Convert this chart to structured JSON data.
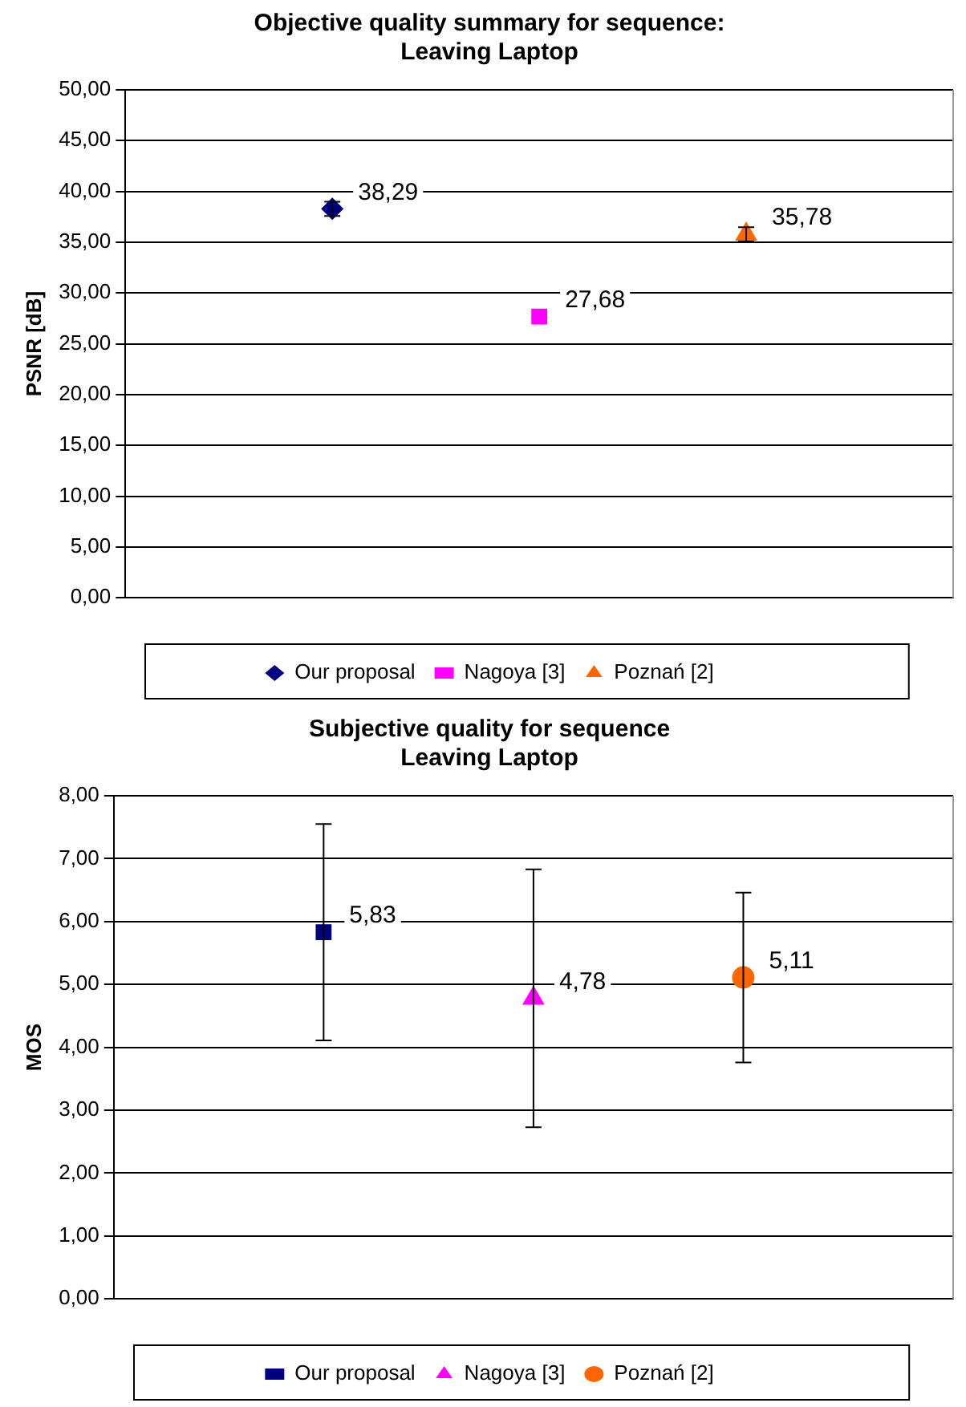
{
  "chart_data": [
    {
      "type": "scatter",
      "title": "Objective quality summary for sequence:\nLeaving Laptop",
      "ylabel": "PSNR [dB]",
      "categories": [
        null,
        null,
        null
      ],
      "ylim": [
        0,
        50
      ],
      "yticks": [
        {
          "value": 0,
          "label": "0,00"
        },
        {
          "value": 5,
          "label": "5,00"
        },
        {
          "value": 10,
          "label": "10,00"
        },
        {
          "value": 15,
          "label": "15,00"
        },
        {
          "value": 20,
          "label": "20,00"
        },
        {
          "value": 25,
          "label": "25,00"
        },
        {
          "value": 30,
          "label": "30,00"
        },
        {
          "value": 35,
          "label": "35,00"
        },
        {
          "value": 40,
          "label": "40,00"
        },
        {
          "value": 45,
          "label": "45,00"
        },
        {
          "value": 50,
          "label": "50,00"
        }
      ],
      "grid": "y",
      "legend": "bottom",
      "series": [
        {
          "name": "Our proposal",
          "color": "#000080",
          "marker": "diamond",
          "values": [
            38.29,
            null,
            null
          ],
          "errors": [
            0.7,
            null,
            null
          ],
          "value_labels": [
            "38,29",
            null,
            null
          ]
        },
        {
          "name": "Nagoya [3]",
          "color": "#ff00ff",
          "marker": "square",
          "values": [
            null,
            27.68,
            null
          ],
          "value_labels": [
            null,
            "27,68",
            null
          ]
        },
        {
          "name": "Poznań [2]",
          "color": "#ff6600",
          "marker": "triangle",
          "values": [
            null,
            null,
            35.78
          ],
          "errors": [
            null,
            null,
            0.7
          ],
          "value_labels": [
            null,
            null,
            "35,78"
          ]
        }
      ]
    },
    {
      "type": "scatter",
      "title": "Subjective quality for sequence\nLeaving Laptop",
      "ylabel": "MOS",
      "categories": [
        null,
        null,
        null
      ],
      "ylim": [
        0,
        8
      ],
      "yticks": [
        {
          "value": 0,
          "label": "0,00"
        },
        {
          "value": 1,
          "label": "1,00"
        },
        {
          "value": 2,
          "label": "2,00"
        },
        {
          "value": 3,
          "label": "3,00"
        },
        {
          "value": 4,
          "label": "4,00"
        },
        {
          "value": 5,
          "label": "5,00"
        },
        {
          "value": 6,
          "label": "6,00"
        },
        {
          "value": 7,
          "label": "7,00"
        },
        {
          "value": 8,
          "label": "8,00"
        }
      ],
      "grid": "y",
      "legend": "bottom",
      "series": [
        {
          "name": "Our proposal",
          "color": "#000080",
          "marker": "square",
          "values": [
            5.83,
            null,
            null
          ],
          "errors": [
            1.72,
            null,
            null
          ],
          "value_labels": [
            "5,83",
            null,
            null
          ]
        },
        {
          "name": "Nagoya [3]",
          "color": "#ff00ff",
          "marker": "triangle",
          "values": [
            null,
            4.78,
            null
          ],
          "errors": [
            null,
            2.05,
            null
          ],
          "value_labels": [
            null,
            "4,78",
            null
          ]
        },
        {
          "name": "Poznań [2]",
          "color": "#ff6600",
          "marker": "circle",
          "values": [
            null,
            null,
            5.11
          ],
          "errors": [
            null,
            null,
            1.35
          ],
          "value_labels": [
            null,
            null,
            "5,11"
          ]
        }
      ]
    }
  ]
}
